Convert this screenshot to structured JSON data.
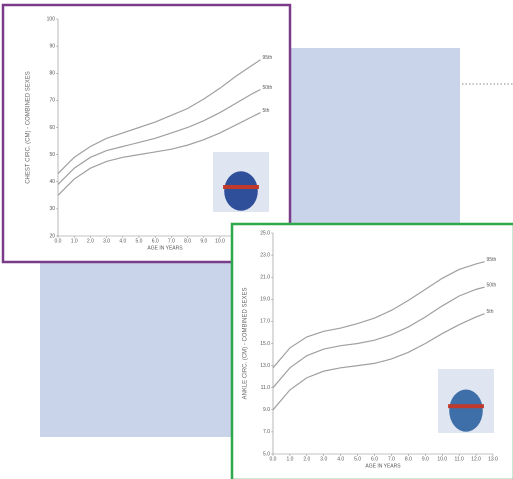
{
  "chart_data": [
    {
      "type": "line",
      "ylabel": "CHEST CIRC. (CM) - COMBINED SEXES",
      "xlabel": "AGE IN YEARS",
      "x": [
        0,
        1,
        2,
        3,
        4,
        5,
        6,
        7,
        8,
        9,
        10,
        11,
        12,
        12.5
      ],
      "xlim": [
        0,
        13
      ],
      "xticks": [
        {
          "value": 0,
          "label": "0.0"
        },
        {
          "value": 1,
          "label": "1.0"
        },
        {
          "value": 2,
          "label": "2.0"
        },
        {
          "value": 3,
          "label": "3.0"
        },
        {
          "value": 4,
          "label": "4.0"
        },
        {
          "value": 5,
          "label": "5.0"
        },
        {
          "value": 6,
          "label": "6.0"
        },
        {
          "value": 7,
          "label": "7.0"
        },
        {
          "value": 8,
          "label": "8.0"
        },
        {
          "value": 9,
          "label": "9.0"
        },
        {
          "value": 10,
          "label": "10.0"
        },
        {
          "value": 11,
          "label": "11.0"
        },
        {
          "value": 12,
          "label": "12.0"
        },
        {
          "value": 13,
          "label": "13.0"
        }
      ],
      "ylim": [
        20,
        100
      ],
      "yticks": [
        20,
        30,
        40,
        50,
        60,
        70,
        80,
        90,
        100
      ],
      "series": [
        {
          "name": "95th",
          "color": "#a0a0a0",
          "values": [
            43,
            49,
            53,
            56,
            58,
            60,
            62,
            64.5,
            67,
            70.5,
            74.5,
            79,
            83,
            85
          ]
        },
        {
          "name": "50th",
          "color": "#a0a0a0",
          "values": [
            39,
            45,
            49,
            51.5,
            53,
            54.5,
            56,
            58,
            60,
            62.5,
            65.5,
            69,
            72.5,
            74
          ]
        },
        {
          "name": "5th",
          "color": "#a0a0a0",
          "values": [
            35,
            41,
            45,
            47.5,
            49,
            50,
            51,
            52,
            53.5,
            55.5,
            58,
            61,
            64,
            65.5
          ]
        }
      ]
    },
    {
      "type": "line",
      "ylabel": "ANKLE CIRC. (CM) - COMBINED SEXES",
      "xlabel": "AGE IN YEARS",
      "x": [
        0,
        1,
        2,
        3,
        4,
        5,
        6,
        7,
        8,
        9,
        10,
        11,
        12,
        12.5
      ],
      "xlim": [
        0,
        13
      ],
      "xticks": [
        {
          "value": 0,
          "label": "0.0"
        },
        {
          "value": 1,
          "label": "1.0"
        },
        {
          "value": 2,
          "label": "2.0"
        },
        {
          "value": 3,
          "label": "3.0"
        },
        {
          "value": 4,
          "label": "4.0"
        },
        {
          "value": 5,
          "label": "5.0"
        },
        {
          "value": 6,
          "label": "6.0"
        },
        {
          "value": 7,
          "label": "7.0"
        },
        {
          "value": 8,
          "label": "8.0"
        },
        {
          "value": 9,
          "label": "9.0"
        },
        {
          "value": 10,
          "label": "10.0"
        },
        {
          "value": 11,
          "label": "11.0"
        },
        {
          "value": 12,
          "label": "12.0"
        },
        {
          "value": 13,
          "label": "13.0"
        }
      ],
      "ylim": [
        5,
        25
      ],
      "yticks": [
        {
          "value": 5,
          "label": "5.0"
        },
        {
          "value": 7,
          "label": "7.0"
        },
        {
          "value": 9,
          "label": "9.0"
        },
        {
          "value": 11,
          "label": "11.0"
        },
        {
          "value": 13,
          "label": "13.0"
        },
        {
          "value": 15,
          "label": "15.0"
        },
        {
          "value": 17,
          "label": "17.0"
        },
        {
          "value": 19,
          "label": "19.0"
        },
        {
          "value": 21,
          "label": "21.0"
        },
        {
          "value": 23,
          "label": "23.0"
        },
        {
          "value": 25,
          "label": "25.0"
        }
      ],
      "series": [
        {
          "name": "95th",
          "color": "#a0a0a0",
          "values": [
            12.8,
            14.6,
            15.6,
            16.1,
            16.4,
            16.8,
            17.3,
            18,
            18.9,
            19.9,
            20.9,
            21.7,
            22.2,
            22.4
          ]
        },
        {
          "name": "50th",
          "color": "#a0a0a0",
          "values": [
            11,
            12.8,
            13.9,
            14.5,
            14.8,
            15,
            15.3,
            15.8,
            16.5,
            17.4,
            18.4,
            19.3,
            19.9,
            20.1
          ]
        },
        {
          "name": "5th",
          "color": "#a0a0a0",
          "values": [
            9,
            10.8,
            11.9,
            12.5,
            12.8,
            13,
            13.2,
            13.6,
            14.2,
            15,
            15.9,
            16.7,
            17.4,
            17.7
          ]
        }
      ]
    }
  ]
}
